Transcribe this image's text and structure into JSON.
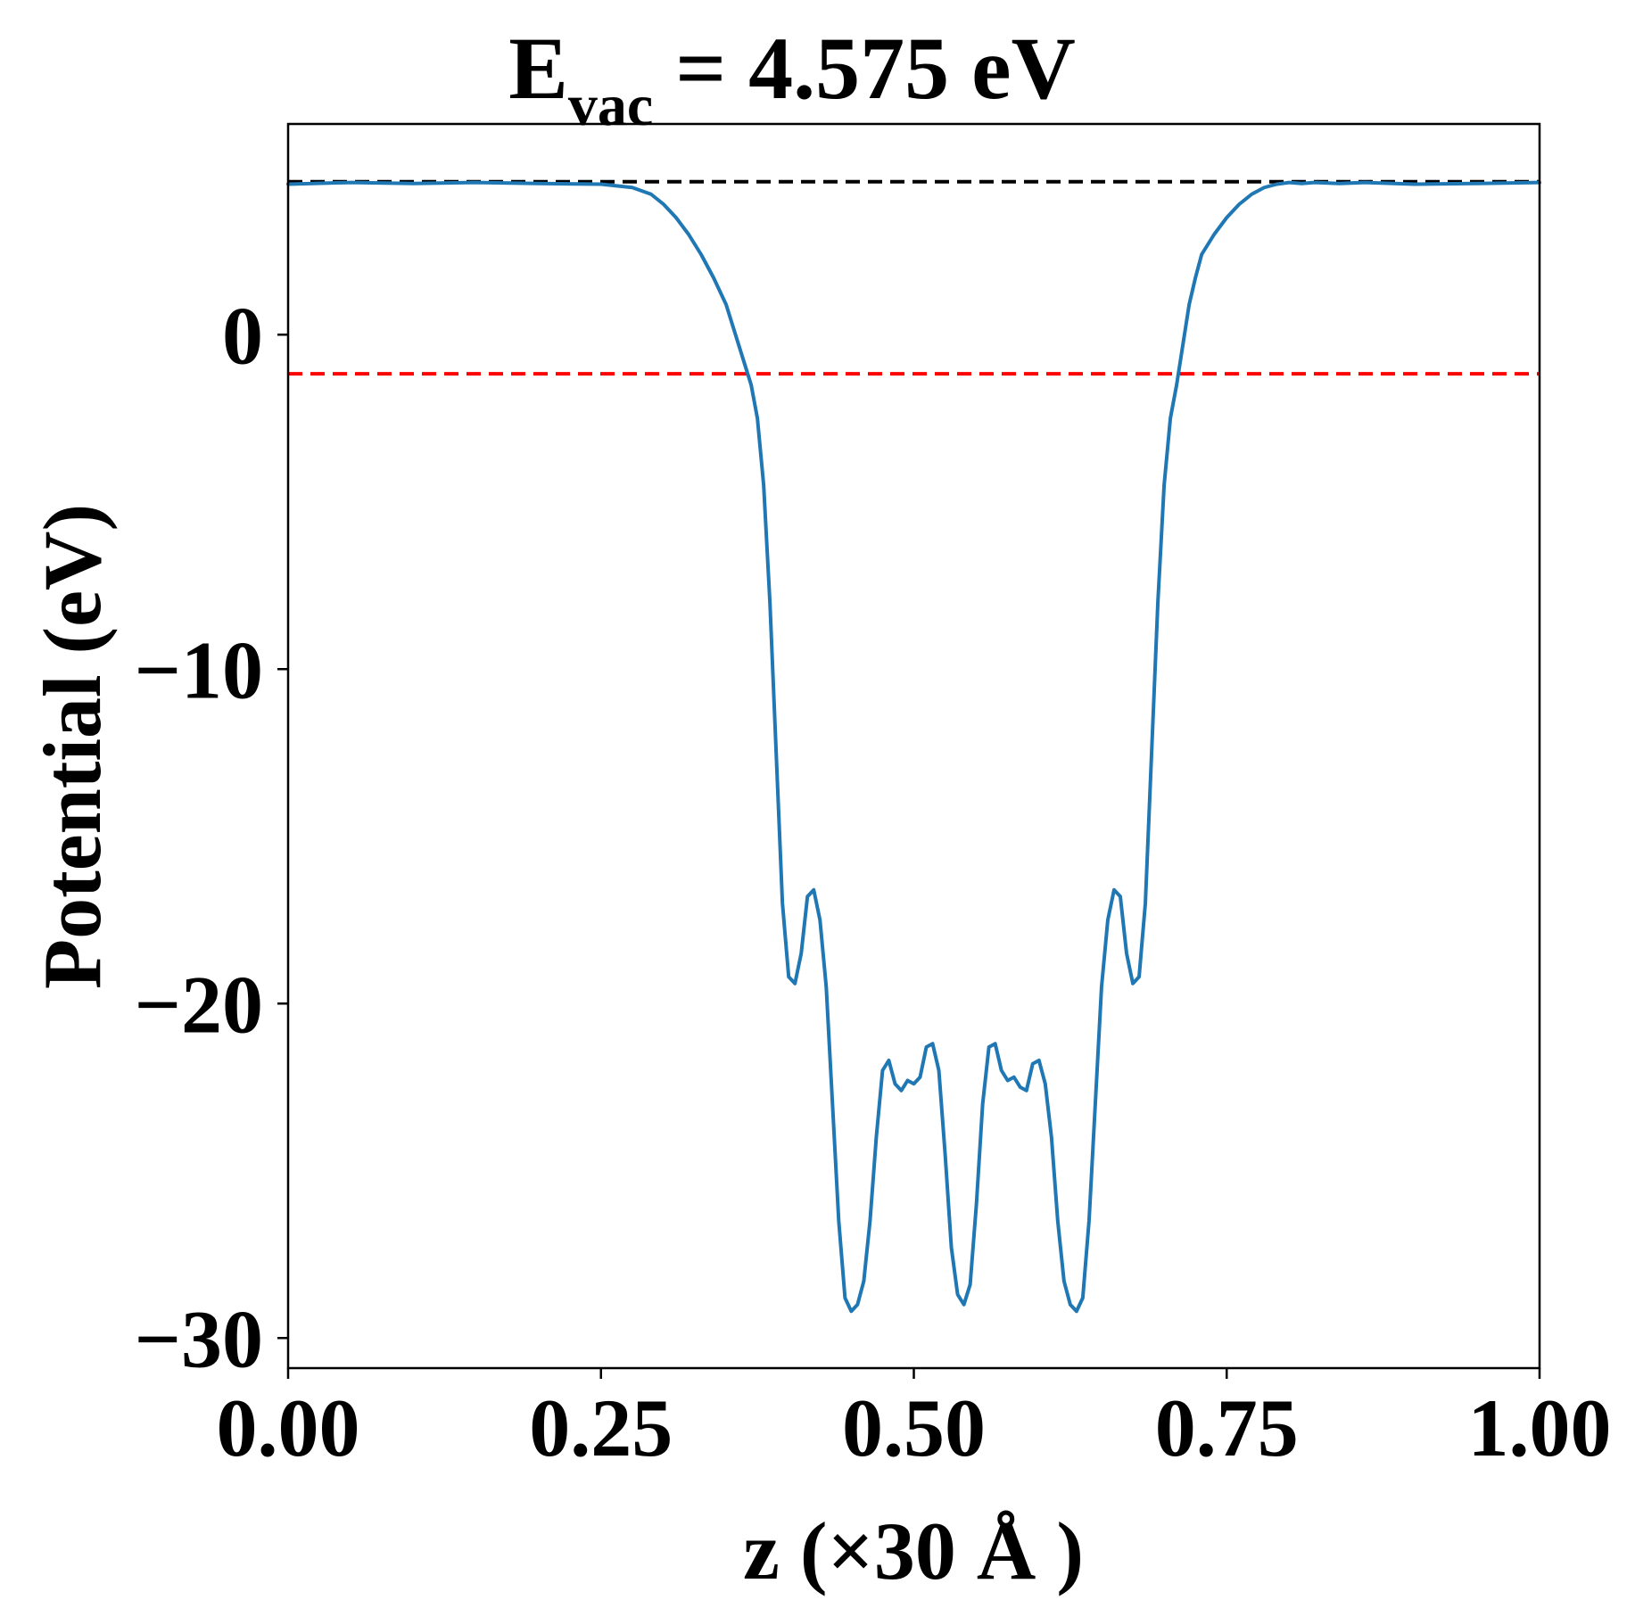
{
  "chart_data": {
    "type": "line",
    "title_main": "E",
    "title_sub": "vac",
    "title_rest": " = 4.575 eV",
    "xlabel": "z (×30 Å )",
    "ylabel": "Potential (eV)",
    "xlim": [
      0,
      1
    ],
    "ylim": [
      -30.9,
      6.3
    ],
    "x_ticks": [
      0.0,
      0.25,
      0.5,
      0.75,
      1.0
    ],
    "x_tick_labels": [
      "0.00",
      "0.25",
      "0.50",
      "0.75",
      "1.00"
    ],
    "y_ticks": [
      0,
      -10,
      -20,
      -30
    ],
    "y_tick_labels": [
      "0",
      "−10",
      "−20",
      "−30"
    ],
    "grid": false,
    "colors": {
      "potential": "#1f77b4",
      "vacuum": "#000000",
      "fermi": "#ff0000"
    },
    "reference_lines": [
      {
        "y": 4.575,
        "color": "#000000",
        "style": "dashed"
      },
      {
        "y": -1.17,
        "color": "#ff0000",
        "style": "dashed"
      }
    ],
    "series": [
      {
        "color": "#1f77b4",
        "x": [
          0.0,
          0.05,
          0.1,
          0.15,
          0.2,
          0.25,
          0.275,
          0.29,
          0.3,
          0.31,
          0.32,
          0.33,
          0.34,
          0.35,
          0.36,
          0.37,
          0.375,
          0.38,
          0.385,
          0.39,
          0.395,
          0.4,
          0.405,
          0.41,
          0.415,
          0.42,
          0.425,
          0.43,
          0.435,
          0.44,
          0.445,
          0.45,
          0.455,
          0.46,
          0.465,
          0.47,
          0.475,
          0.48,
          0.485,
          0.49,
          0.495,
          0.5,
          0.505,
          0.51,
          0.515,
          0.52,
          0.525,
          0.53,
          0.535,
          0.54,
          0.545,
          0.55,
          0.555,
          0.56,
          0.565,
          0.57,
          0.575,
          0.58,
          0.585,
          0.59,
          0.595,
          0.6,
          0.605,
          0.61,
          0.615,
          0.62,
          0.625,
          0.63,
          0.635,
          0.64,
          0.645,
          0.65,
          0.655,
          0.66,
          0.665,
          0.67,
          0.675,
          0.68,
          0.685,
          0.69,
          0.695,
          0.7,
          0.705,
          0.71,
          0.715,
          0.72,
          0.725,
          0.73,
          0.74,
          0.75,
          0.76,
          0.77,
          0.78,
          0.79,
          0.8,
          0.81,
          0.82,
          0.84,
          0.86,
          0.9,
          0.95,
          1.0
        ],
        "y": [
          4.5,
          4.55,
          4.52,
          4.55,
          4.52,
          4.5,
          4.4,
          4.2,
          3.9,
          3.5,
          3.0,
          2.4,
          1.7,
          0.9,
          -0.3,
          -1.5,
          -2.5,
          -4.5,
          -8.0,
          -12.5,
          -17.0,
          -19.2,
          -19.4,
          -18.5,
          -16.8,
          -16.6,
          -17.5,
          -19.5,
          -23.0,
          -26.5,
          -28.8,
          -29.2,
          -29.0,
          -28.3,
          -26.5,
          -24.0,
          -22.0,
          -21.7,
          -22.4,
          -22.6,
          -22.3,
          -22.4,
          -22.2,
          -21.3,
          -21.2,
          -22.0,
          -24.5,
          -27.3,
          -28.7,
          -29.0,
          -28.4,
          -26.0,
          -23.0,
          -21.3,
          -21.2,
          -22.0,
          -22.3,
          -22.2,
          -22.5,
          -22.6,
          -21.8,
          -21.7,
          -22.4,
          -24.0,
          -26.5,
          -28.3,
          -29.0,
          -29.2,
          -28.8,
          -26.5,
          -23.0,
          -19.5,
          -17.5,
          -16.6,
          -16.8,
          -18.5,
          -19.4,
          -19.2,
          -17.0,
          -12.5,
          -8.0,
          -4.5,
          -2.5,
          -1.5,
          -0.3,
          0.9,
          1.7,
          2.4,
          3.0,
          3.5,
          3.9,
          4.2,
          4.4,
          4.5,
          4.55,
          4.52,
          4.55,
          4.52,
          4.55,
          4.5,
          4.52,
          4.55
        ]
      }
    ]
  }
}
